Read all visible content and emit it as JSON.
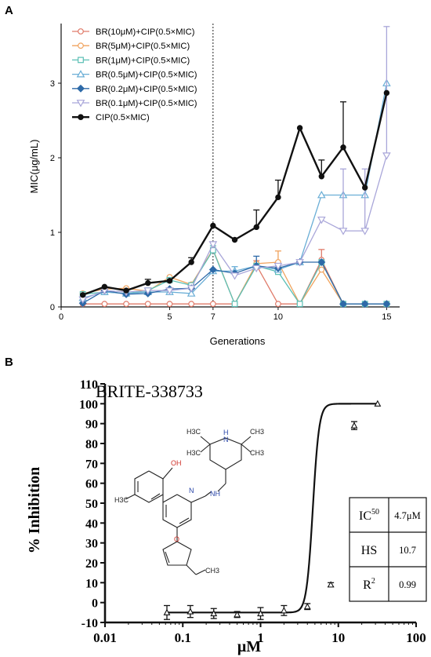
{
  "panel_a": {
    "label": "A",
    "chart_data": {
      "type": "line",
      "xlabel": "Generations",
      "ylabel": "MIC(μg/mL)",
      "xlim": [
        0,
        15.6
      ],
      "ylim": [
        0,
        3.8
      ],
      "xticks": [
        0,
        5,
        7,
        10,
        15
      ],
      "yticks": [
        0,
        1,
        2,
        3
      ],
      "vline_x": 7,
      "legend_position": "top-left",
      "x": [
        1,
        2,
        3,
        4,
        5,
        6,
        7,
        8,
        9,
        10,
        11,
        12,
        13,
        14,
        15
      ],
      "series": [
        {
          "name": "BR(10μM)+CIP(0.5×MIC)",
          "color": "#e07b6a",
          "marker": "circle-open",
          "values": [
            0.04,
            0.04,
            0.04,
            0.04,
            0.04,
            0.04,
            0.04,
            0.04,
            0.56,
            0.04,
            0.04,
            0.63,
            0.04,
            0.04,
            0.04
          ],
          "errors": [
            0,
            0,
            0,
            0,
            0,
            0,
            0,
            0,
            0.06,
            0,
            0,
            0.14,
            0,
            0,
            0
          ]
        },
        {
          "name": "BR(5μM)+CIP(0.5×MIC)",
          "color": "#f0a35e",
          "marker": "circle-open",
          "values": [
            0.18,
            0.24,
            0.25,
            0.21,
            0.4,
            0.3,
            0.77,
            0.04,
            0.58,
            0.6,
            0.04,
            0.5,
            0.04,
            0.04,
            0.04
          ],
          "errors": [
            0,
            0,
            0,
            0,
            0,
            0,
            0,
            0,
            0,
            0.15,
            0,
            0,
            0,
            0,
            0
          ]
        },
        {
          "name": "BR(1μM)+CIP(0.5×MIC)",
          "color": "#5bbfb5",
          "marker": "square-open",
          "values": [
            0.17,
            0.2,
            0.18,
            0.22,
            0.36,
            0.29,
            0.76,
            0.04,
            0.55,
            0.47,
            0.04,
            0.6,
            0.04,
            0.04,
            0.04
          ],
          "errors": [
            0,
            0,
            0,
            0,
            0,
            0,
            0.06,
            0,
            0,
            0.08,
            0,
            0,
            0,
            0,
            0
          ]
        },
        {
          "name": "BR(0.5μM)+CIP(0.5×MIC)",
          "color": "#6aaed6",
          "marker": "triangle-up-open",
          "values": [
            0.12,
            0.2,
            0.18,
            0.2,
            0.2,
            0.18,
            0.48,
            0.48,
            0.55,
            0.5,
            0.6,
            1.5,
            1.5,
            1.5,
            3.0
          ],
          "errors": [
            0,
            0,
            0,
            0,
            0,
            0,
            0,
            0.06,
            0,
            0,
            0,
            0,
            0,
            0,
            0
          ]
        },
        {
          "name": "BR(0.2μM)+CIP(0.5×MIC)",
          "color": "#2e6aa8",
          "marker": "diamond-filled",
          "values": [
            0.05,
            0.22,
            0.17,
            0.18,
            0.24,
            0.25,
            0.5,
            0.45,
            0.55,
            0.52,
            0.6,
            0.6,
            0.04,
            0.04,
            0.04
          ],
          "errors": [
            0,
            0,
            0,
            0,
            0,
            0,
            0,
            0,
            0.13,
            0,
            0,
            0,
            0,
            0,
            0
          ]
        },
        {
          "name": "BR(0.1μM)+CIP(0.5×MIC)",
          "color": "#a9a6d9",
          "marker": "triangle-down-open",
          "values": [
            0.1,
            0.22,
            0.2,
            0.22,
            0.22,
            0.25,
            0.84,
            0.42,
            0.52,
            0.55,
            0.6,
            1.17,
            1.02,
            1.02,
            2.03
          ],
          "errors": [
            0,
            0,
            0,
            0,
            0,
            0,
            0,
            0,
            0,
            0,
            0,
            0,
            0.83,
            0.83,
            1.73
          ]
        },
        {
          "name": "CIP(0.5×MIC)",
          "color": "#111111",
          "marker": "circle-filled",
          "values": [
            0.16,
            0.27,
            0.22,
            0.32,
            0.35,
            0.6,
            1.09,
            0.9,
            1.07,
            1.47,
            2.4,
            1.75,
            2.14,
            1.6,
            2.87
          ],
          "errors": [
            0,
            0,
            0,
            0.05,
            0,
            0.06,
            0,
            0,
            0.23,
            0.23,
            0,
            0.22,
            0.61,
            0,
            0
          ]
        }
      ]
    }
  },
  "panel_b": {
    "label": "B",
    "compound_name": "BRITE-338733",
    "chart_data": {
      "type": "scatter",
      "xlabel": "μM",
      "ylabel": "% Inhibition",
      "xscale": "log",
      "xlim": [
        0.01,
        100
      ],
      "ylim": [
        -10,
        110
      ],
      "xtick_labels": [
        "0.01",
        "0.1",
        "1",
        "10",
        "100"
      ],
      "yticks": [
        -10,
        0,
        10,
        20,
        30,
        40,
        50,
        60,
        70,
        80,
        90,
        100,
        110
      ],
      "x": [
        0.0625,
        0.125,
        0.25,
        0.5,
        1,
        2,
        4,
        8,
        16,
        32
      ],
      "values": [
        -5,
        -4.5,
        -5.5,
        -6,
        -5.5,
        -4,
        -2,
        9,
        89,
        100
      ],
      "errors": [
        3.5,
        3,
        2.5,
        1.5,
        3,
        2.5,
        1.5,
        1,
        2,
        0
      ],
      "fit": {
        "ic50": 4.7,
        "hill_slope": 10.7,
        "bottom": -5,
        "top": 100
      }
    },
    "stats_table": [
      {
        "label": "IC",
        "label_sup": "50",
        "value": "4.7μM"
      },
      {
        "label": "HS",
        "label_sup": "",
        "value": "10.7"
      },
      {
        "label": "R",
        "label_sup": "2",
        "value": "0.99"
      }
    ],
    "structure_labels": {
      "oh": "OH",
      "n_ring": "N",
      "nh_top": "H",
      "n_pip": "N",
      "nh": "NH",
      "h3c_1": "H3C",
      "ch3_1": "CH3",
      "h3c_2": "H3C",
      "ch3_2": "CH3",
      "h3c_ar": "H3C",
      "o": "O",
      "ch3_e": "CH3"
    },
    "colors": {
      "hetero_red": "#d0342c",
      "hetero_blue": "#2a46a8"
    }
  }
}
